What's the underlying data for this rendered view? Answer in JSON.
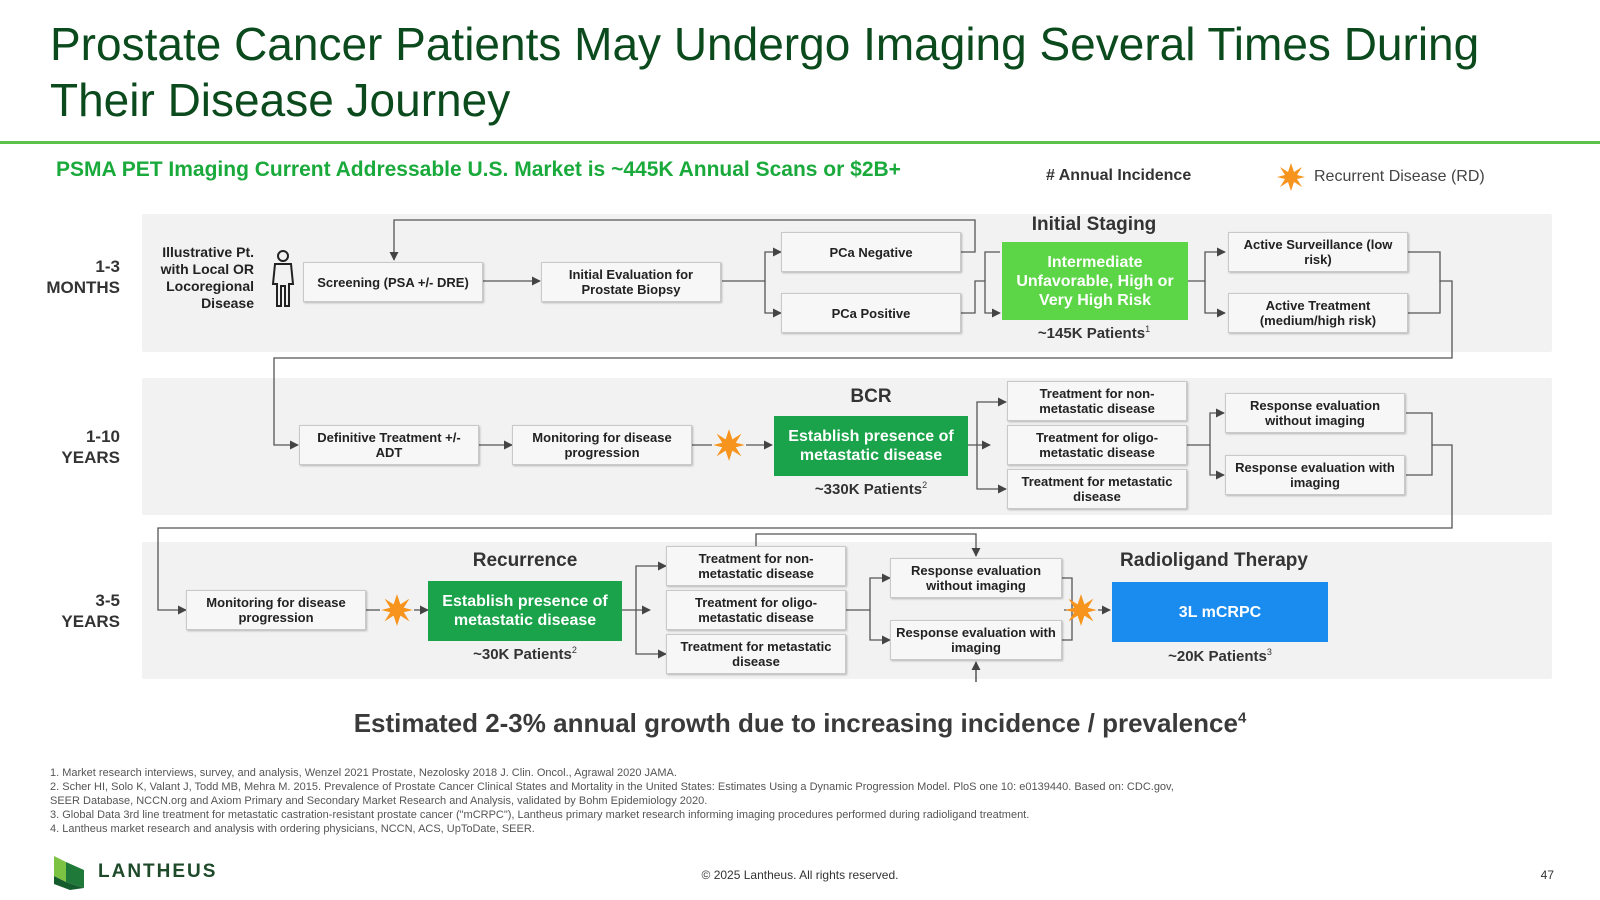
{
  "title": "Prostate Cancer Patients May Undergo Imaging Several Times During Their Disease Journey",
  "subtitle": "PSMA PET Imaging Current Addressable U.S. Market is ~445K Annual Scans or $2B+",
  "legend": {
    "incidence": "# Annual Incidence",
    "recurrent": "Recurrent Disease (RD)",
    "accent": "#f7941d"
  },
  "colors": {
    "title": "#0b4a1d",
    "green_light": "#5cd646",
    "green_dark": "#1aa34a",
    "blue": "#1a8cf0"
  },
  "rows": {
    "r1": {
      "time": [
        "1-3",
        "MONTHS"
      ],
      "patient": "Illustrative Pt. with Local OR Locoregional Disease",
      "screening": "Screening (PSA +/- DRE)",
      "initial_eval": "Initial Evaluation for Prostate Biopsy",
      "pca_negative": "PCa Negative",
      "pca_positive": "PCa Positive",
      "stage_title": "Initial Staging",
      "stage_box": "Intermediate Unfavorable, High or Very High Risk",
      "patients": "~145K Patients",
      "patients_sup": "1",
      "active_surveillance": "Active Surveillance (low risk)",
      "active_treatment": "Active Treatment (medium/high risk)"
    },
    "r2": {
      "time": [
        "1-10",
        "YEARS"
      ],
      "definitive": "Definitive Treatment +/- ADT",
      "monitoring": "Monitoring for disease progression",
      "stage_title": "BCR",
      "stage_box": "Establish presence of metastatic disease",
      "patients": "~330K Patients",
      "patients_sup": "2",
      "tx_non": "Treatment for non-metastatic disease",
      "tx_oligo": "Treatment for oligo-metastatic disease",
      "tx_met": "Treatment for metastatic disease",
      "resp_without": "Response evaluation without imaging",
      "resp_with": "Response evaluation with imaging"
    },
    "r3": {
      "time": [
        "3-5",
        "YEARS"
      ],
      "monitoring": "Monitoring for disease progression",
      "stage_title": "Recurrence",
      "stage_box": "Establish presence of metastatic disease",
      "patients": "~30K Patients",
      "patients_sup": "2",
      "tx_non": "Treatment for non-metastatic disease",
      "tx_oligo": "Treatment for oligo-metastatic disease",
      "tx_met": "Treatment for metastatic disease",
      "resp_without": "Response evaluation without imaging",
      "resp_with": "Response evaluation with imaging",
      "rlt_title": "Radioligand Therapy",
      "rlt_box": "3L mCRPC",
      "rlt_patients": "~20K Patients",
      "rlt_patients_sup": "3"
    }
  },
  "growth": "Estimated 2-3% annual growth due to increasing incidence / prevalence",
  "growth_sup": "4",
  "footnotes": [
    "1. Market research interviews, survey, and analysis, Wenzel 2021 Prostate, Nezolosky 2018 J. Clin. Oncol., Agrawal 2020 JAMA.",
    "2. Scher HI, Solo K, Valant J, Todd MB, Mehra M. 2015. Prevalence of Prostate Cancer Clinical States and Mortality in the United States: Estimates Using a Dynamic Progression Model. PloS one 10: e0139440.  Based on: CDC.gov,",
    "SEER Database,  NCCN.org and Axiom Primary and Secondary Market Research and Analysis, validated by Bohm Epidemiology 2020.",
    "3. Global Data 3rd line treatment for metastatic castration-resistant prostate cancer (\"mCRPC\"), Lantheus primary market research informing imaging procedures performed during radioligand treatment.",
    "4. Lantheus market research and analysis with ordering physicians, NCCN, ACS, UpToDate, SEER."
  ],
  "footer": {
    "logo": "LANTHEUS",
    "copyright": "© 2025 Lantheus. All rights reserved.",
    "page": "47"
  },
  "icons": [
    "person-icon",
    "recurrent-disease-star-icon",
    "lantheus-logo-icon"
  ]
}
